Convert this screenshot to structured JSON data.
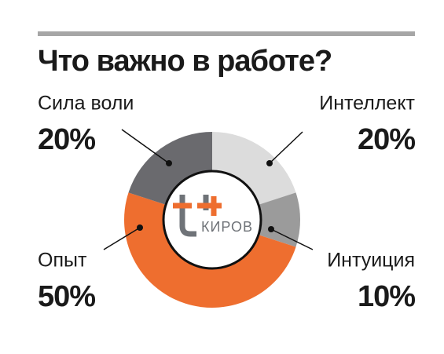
{
  "chart_data": {
    "type": "donut",
    "title": "Что важно в работе?",
    "categories": [
      "Интеллект",
      "Интуиция",
      "Опыт",
      "Сила воли"
    ],
    "values": [
      20,
      10,
      50,
      20
    ],
    "value_labels": [
      "20%",
      "10%",
      "50%",
      "20%"
    ],
    "colors": [
      "#dcdcdc",
      "#9b9b9b",
      "#ee6e2f",
      "#6a6a6e"
    ],
    "logo_text": "КИРОВ"
  }
}
